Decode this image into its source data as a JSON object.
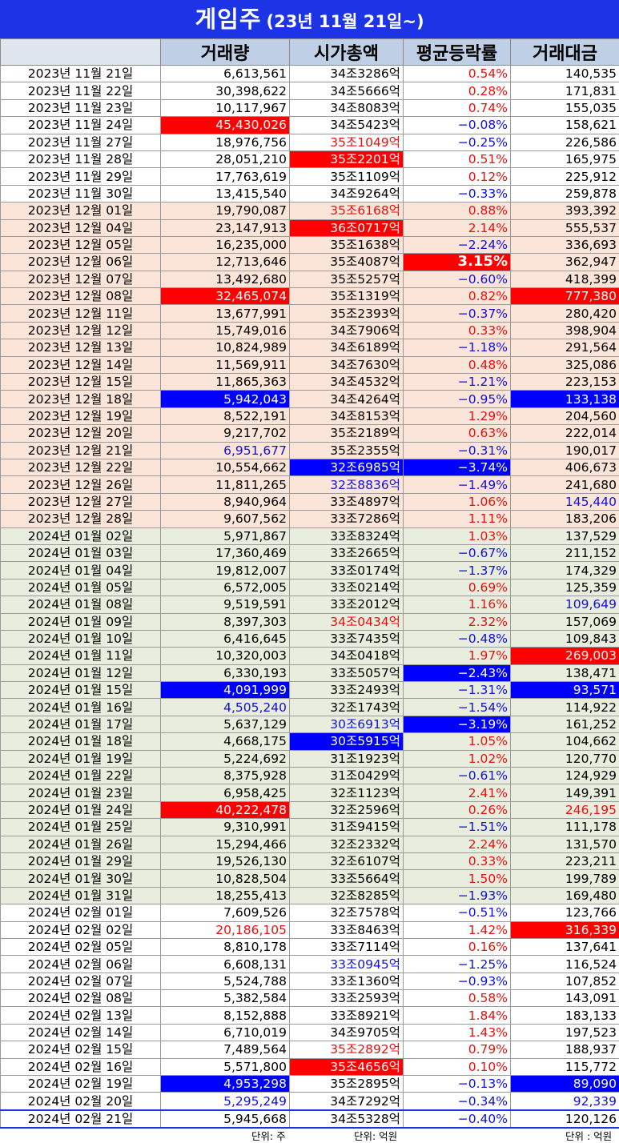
{
  "title": {
    "main": "게임주",
    "sub": "(23년 11월 21일~)"
  },
  "headers": [
    "",
    "거래량",
    "시가총액",
    "평균등락률",
    "거래대금"
  ],
  "rows": [
    {
      "date": "2023년 11월 21일",
      "volume": "6,613,561",
      "mcap": "34조3286억",
      "rate": "0.54%",
      "amount": "140,535",
      "period": "p1"
    },
    {
      "date": "2023년 11월 22일",
      "volume": "30,398,622",
      "mcap": "34조5666억",
      "rate": "0.28%",
      "amount": "171,831",
      "period": "p1"
    },
    {
      "date": "2023년 11월 23일",
      "volume": "10,117,967",
      "mcap": "34조8083억",
      "rate": "0.74%",
      "amount": "155,035",
      "period": "p1"
    },
    {
      "date": "2023년 11월 24일",
      "volume": "45,430,026",
      "mcap": "34조5423억",
      "rate": "-0.08%",
      "amount": "158,621",
      "period": "p1",
      "hl": {
        "volume": "hr"
      }
    },
    {
      "date": "2023년 11월 27일",
      "volume": "18,976,756",
      "mcap": "35조1049억",
      "rate": "-0.25%",
      "amount": "226,586",
      "period": "p1",
      "hl": {
        "mcap": "tr"
      }
    },
    {
      "date": "2023년 11월 28일",
      "volume": "28,051,210",
      "mcap": "35조2201억",
      "rate": "0.51%",
      "amount": "165,975",
      "period": "p1",
      "hl": {
        "mcap": "hr"
      }
    },
    {
      "date": "2023년 11월 29일",
      "volume": "17,763,619",
      "mcap": "35조1109억",
      "rate": "0.12%",
      "amount": "225,912",
      "period": "p1"
    },
    {
      "date": "2023년 11월 30일",
      "volume": "13,415,540",
      "mcap": "34조9264억",
      "rate": "-0.33%",
      "amount": "259,878",
      "period": "p1"
    },
    {
      "date": "2023년 12월 01일",
      "volume": "19,790,087",
      "mcap": "35조6168억",
      "rate": "0.88%",
      "amount": "393,392",
      "period": "p2",
      "hl": {
        "mcap": "tr"
      }
    },
    {
      "date": "2023년 12월 04일",
      "volume": "23,147,913",
      "mcap": "36조0717억",
      "rate": "2.14%",
      "amount": "555,537",
      "period": "p2",
      "hl": {
        "mcap": "hr"
      }
    },
    {
      "date": "2023년 12월 05일",
      "volume": "16,235,000",
      "mcap": "35조1638억",
      "rate": "-2.24%",
      "amount": "336,693",
      "period": "p2"
    },
    {
      "date": "2023년 12월 06일",
      "volume": "12,713,646",
      "mcap": "35조4087억",
      "rate": "3.15%",
      "amount": "362,947",
      "period": "p2",
      "hl": {
        "rate": "hr big"
      }
    },
    {
      "date": "2023년 12월 07일",
      "volume": "13,492,680",
      "mcap": "35조5257억",
      "rate": "-0.60%",
      "amount": "418,399",
      "period": "p2"
    },
    {
      "date": "2023년 12월 08일",
      "volume": "32,465,074",
      "mcap": "35조1319억",
      "rate": "0.82%",
      "amount": "777,380",
      "period": "p2",
      "hl": {
        "volume": "hr",
        "amount": "hr"
      }
    },
    {
      "date": "2023년 12월 11일",
      "volume": "13,677,991",
      "mcap": "35조2393억",
      "rate": "-0.37%",
      "amount": "280,420",
      "period": "p2"
    },
    {
      "date": "2023년 12월 12일",
      "volume": "15,749,016",
      "mcap": "34조7906억",
      "rate": "0.33%",
      "amount": "398,904",
      "period": "p2"
    },
    {
      "date": "2023년 12월 13일",
      "volume": "10,824,989",
      "mcap": "34조6189억",
      "rate": "-1.18%",
      "amount": "291,564",
      "period": "p2"
    },
    {
      "date": "2023년 12월 14일",
      "volume": "11,569,911",
      "mcap": "34조7630억",
      "rate": "0.48%",
      "amount": "325,086",
      "period": "p2"
    },
    {
      "date": "2023년 12월 15일",
      "volume": "11,865,363",
      "mcap": "34조4532억",
      "rate": "-1.21%",
      "amount": "223,153",
      "period": "p2"
    },
    {
      "date": "2023년 12월 18일",
      "volume": "5,942,043",
      "mcap": "34조4264억",
      "rate": "-0.95%",
      "amount": "133,138",
      "period": "p2",
      "hl": {
        "volume": "hb",
        "amount": "hb"
      }
    },
    {
      "date": "2023년 12월 19일",
      "volume": "8,522,191",
      "mcap": "34조8153억",
      "rate": "1.29%",
      "amount": "204,560",
      "period": "p2"
    },
    {
      "date": "2023년 12월 20일",
      "volume": "9,217,702",
      "mcap": "35조2189억",
      "rate": "0.63%",
      "amount": "222,014",
      "period": "p2"
    },
    {
      "date": "2023년 12월 21일",
      "volume": "6,951,677",
      "mcap": "35조2355억",
      "rate": "-0.31%",
      "amount": "190,017",
      "period": "p2",
      "hl": {
        "volume": "tb"
      }
    },
    {
      "date": "2023년 12월 22일",
      "volume": "10,554,662",
      "mcap": "32조6985억",
      "rate": "-3.74%",
      "amount": "406,673",
      "period": "p2",
      "hl": {
        "mcap": "hb",
        "rate": "hb"
      }
    },
    {
      "date": "2023년 12월 26일",
      "volume": "11,811,265",
      "mcap": "32조8836억",
      "rate": "-1.49%",
      "amount": "241,680",
      "period": "p2",
      "hl": {
        "mcap": "tb"
      }
    },
    {
      "date": "2023년 12월 27일",
      "volume": "8,940,964",
      "mcap": "33조4897억",
      "rate": "1.06%",
      "amount": "145,440",
      "period": "p2",
      "hl": {
        "amount": "tb"
      }
    },
    {
      "date": "2023년 12월 28일",
      "volume": "9,607,562",
      "mcap": "33조7286억",
      "rate": "1.11%",
      "amount": "183,206",
      "period": "p2"
    },
    {
      "date": "2024년 01월 02일",
      "volume": "5,971,867",
      "mcap": "33조8324억",
      "rate": "1.03%",
      "amount": "137,529",
      "period": "p3"
    },
    {
      "date": "2024년 01월 03일",
      "volume": "17,360,469",
      "mcap": "33조2665억",
      "rate": "-0.67%",
      "amount": "211,152",
      "period": "p3"
    },
    {
      "date": "2024년 01월 04일",
      "volume": "19,812,007",
      "mcap": "33조0174억",
      "rate": "-1.37%",
      "amount": "174,329",
      "period": "p3"
    },
    {
      "date": "2024년 01월 05일",
      "volume": "6,572,005",
      "mcap": "33조0214억",
      "rate": "0.69%",
      "amount": "125,359",
      "period": "p3"
    },
    {
      "date": "2024년 01월 08일",
      "volume": "9,519,591",
      "mcap": "33조2012억",
      "rate": "1.16%",
      "amount": "109,649",
      "period": "p3",
      "hl": {
        "amount": "tb"
      }
    },
    {
      "date": "2024년 01월 09일",
      "volume": "8,397,303",
      "mcap": "34조0434억",
      "rate": "2.32%",
      "amount": "157,069",
      "period": "p3",
      "hl": {
        "mcap": "tr"
      }
    },
    {
      "date": "2024년 01월 10일",
      "volume": "6,416,645",
      "mcap": "33조7435억",
      "rate": "-0.48%",
      "amount": "109,843",
      "period": "p3"
    },
    {
      "date": "2024년 01월 11일",
      "volume": "10,320,003",
      "mcap": "34조0418억",
      "rate": "1.97%",
      "amount": "269,003",
      "period": "p3",
      "hl": {
        "amount": "hr"
      }
    },
    {
      "date": "2024년 01월 12일",
      "volume": "6,330,193",
      "mcap": "33조5057억",
      "rate": "-2.43%",
      "amount": "138,471",
      "period": "p3",
      "hl": {
        "rate": "hb"
      }
    },
    {
      "date": "2024년 01월 15일",
      "volume": "4,091,999",
      "mcap": "33조2493억",
      "rate": "-1.31%",
      "amount": "93,571",
      "period": "p3",
      "hl": {
        "volume": "hb",
        "amount": "hb"
      }
    },
    {
      "date": "2024년 01월 16일",
      "volume": "4,505,240",
      "mcap": "32조1743억",
      "rate": "-1.54%",
      "amount": "114,922",
      "period": "p3",
      "hl": {
        "volume": "tb"
      }
    },
    {
      "date": "2024년 01월 17일",
      "volume": "5,637,129",
      "mcap": "30조6913억",
      "rate": "-3.19%",
      "amount": "161,252",
      "period": "p3",
      "hl": {
        "mcap": "tb",
        "rate": "hb"
      }
    },
    {
      "date": "2024년 01월 18일",
      "volume": "4,668,175",
      "mcap": "30조5915억",
      "rate": "1.05%",
      "amount": "104,662",
      "period": "p3",
      "hl": {
        "mcap": "hb"
      }
    },
    {
      "date": "2024년 01월 19일",
      "volume": "5,224,692",
      "mcap": "31조1923억",
      "rate": "1.02%",
      "amount": "120,770",
      "period": "p3"
    },
    {
      "date": "2024년 01월 22일",
      "volume": "8,375,928",
      "mcap": "31조0429억",
      "rate": "-0.61%",
      "amount": "124,929",
      "period": "p3"
    },
    {
      "date": "2024년 01월 23일",
      "volume": "6,958,425",
      "mcap": "32조1123억",
      "rate": "2.41%",
      "amount": "149,391",
      "period": "p3"
    },
    {
      "date": "2024년 01월 24일",
      "volume": "40,222,478",
      "mcap": "32조2596억",
      "rate": "0.26%",
      "amount": "246,195",
      "period": "p3",
      "hl": {
        "volume": "hr",
        "amount": "tr"
      }
    },
    {
      "date": "2024년 01월 25일",
      "volume": "9,310,991",
      "mcap": "31조9415억",
      "rate": "-1.51%",
      "amount": "111,178",
      "period": "p3"
    },
    {
      "date": "2024년 01월 26일",
      "volume": "15,294,466",
      "mcap": "32조2332억",
      "rate": "2.24%",
      "amount": "131,570",
      "period": "p3"
    },
    {
      "date": "2024년 01월 29일",
      "volume": "19,526,130",
      "mcap": "32조6107억",
      "rate": "0.33%",
      "amount": "223,211",
      "period": "p3"
    },
    {
      "date": "2024년 01월 30일",
      "volume": "10,828,504",
      "mcap": "33조5664억",
      "rate": "1.50%",
      "amount": "199,789",
      "period": "p3"
    },
    {
      "date": "2024년 01월 31일",
      "volume": "18,255,413",
      "mcap": "32조8285억",
      "rate": "-1.93%",
      "amount": "169,480",
      "period": "p3"
    },
    {
      "date": "2024년 02월 01일",
      "volume": "7,609,526",
      "mcap": "32조7578억",
      "rate": "-0.51%",
      "amount": "123,766",
      "period": "p4"
    },
    {
      "date": "2024년 02월 02일",
      "volume": "20,186,105",
      "mcap": "33조8463억",
      "rate": "1.42%",
      "amount": "316,339",
      "period": "p4",
      "hl": {
        "volume": "tr",
        "amount": "hr"
      }
    },
    {
      "date": "2024년 02월 05일",
      "volume": "8,810,178",
      "mcap": "33조7114억",
      "rate": "0.16%",
      "amount": "137,641",
      "period": "p4"
    },
    {
      "date": "2024년 02월 06일",
      "volume": "6,608,131",
      "mcap": "33조0945억",
      "rate": "-1.25%",
      "amount": "116,524",
      "period": "p4",
      "hl": {
        "mcap": "tb"
      }
    },
    {
      "date": "2024년 02월 07일",
      "volume": "5,524,788",
      "mcap": "33조1360억",
      "rate": "-0.93%",
      "amount": "107,852",
      "period": "p4"
    },
    {
      "date": "2024년 02월 08일",
      "volume": "5,382,584",
      "mcap": "33조2593억",
      "rate": "0.58%",
      "amount": "143,091",
      "period": "p4"
    },
    {
      "date": "2024년 02월 13일",
      "volume": "8,152,888",
      "mcap": "33조8921억",
      "rate": "1.84%",
      "amount": "183,133",
      "period": "p4"
    },
    {
      "date": "2024년 02월 14일",
      "volume": "6,710,019",
      "mcap": "34조9705억",
      "rate": "1.43%",
      "amount": "197,523",
      "period": "p4"
    },
    {
      "date": "2024년 02월 15일",
      "volume": "7,489,564",
      "mcap": "35조2892억",
      "rate": "0.79%",
      "amount": "188,937",
      "period": "p4",
      "hl": {
        "mcap": "tr"
      }
    },
    {
      "date": "2024년 02월 16일",
      "volume": "5,571,800",
      "mcap": "35조4656억",
      "rate": "0.10%",
      "amount": "115,772",
      "period": "p4",
      "hl": {
        "mcap": "hr"
      }
    },
    {
      "date": "2024년 02월 19일",
      "volume": "4,953,298",
      "mcap": "35조2895억",
      "rate": "-0.13%",
      "amount": "89,090",
      "period": "p4",
      "hl": {
        "volume": "hb",
        "amount": "hb"
      }
    },
    {
      "date": "2024년 02월 20일",
      "volume": "5,295,249",
      "mcap": "34조7292억",
      "rate": "-0.34%",
      "amount": "92,339",
      "period": "p4",
      "hl": {
        "volume": "tb",
        "amount": "tb"
      }
    },
    {
      "date": "2024년 02월 21일",
      "volume": "5,945,668",
      "mcap": "34조5328억",
      "rate": "-0.40%",
      "amount": "120,126",
      "period": "p4",
      "last": true
    }
  ],
  "footer": {
    "volume_unit": "단위: 주",
    "mcap_unit": "단위: 억원",
    "amount_unit": "단위 : 억원"
  },
  "colors": {
    "title_bg": "#1c34e6",
    "header_bg": "#bfcfe6",
    "row_nov": "#ffffff",
    "row_dec": "#fbe5d8",
    "row_jan": "#e9edde",
    "highlight_red": "#ff0000",
    "highlight_blue": "#0000ff",
    "text_up": "#ea1010",
    "text_down": "#1010e0"
  }
}
